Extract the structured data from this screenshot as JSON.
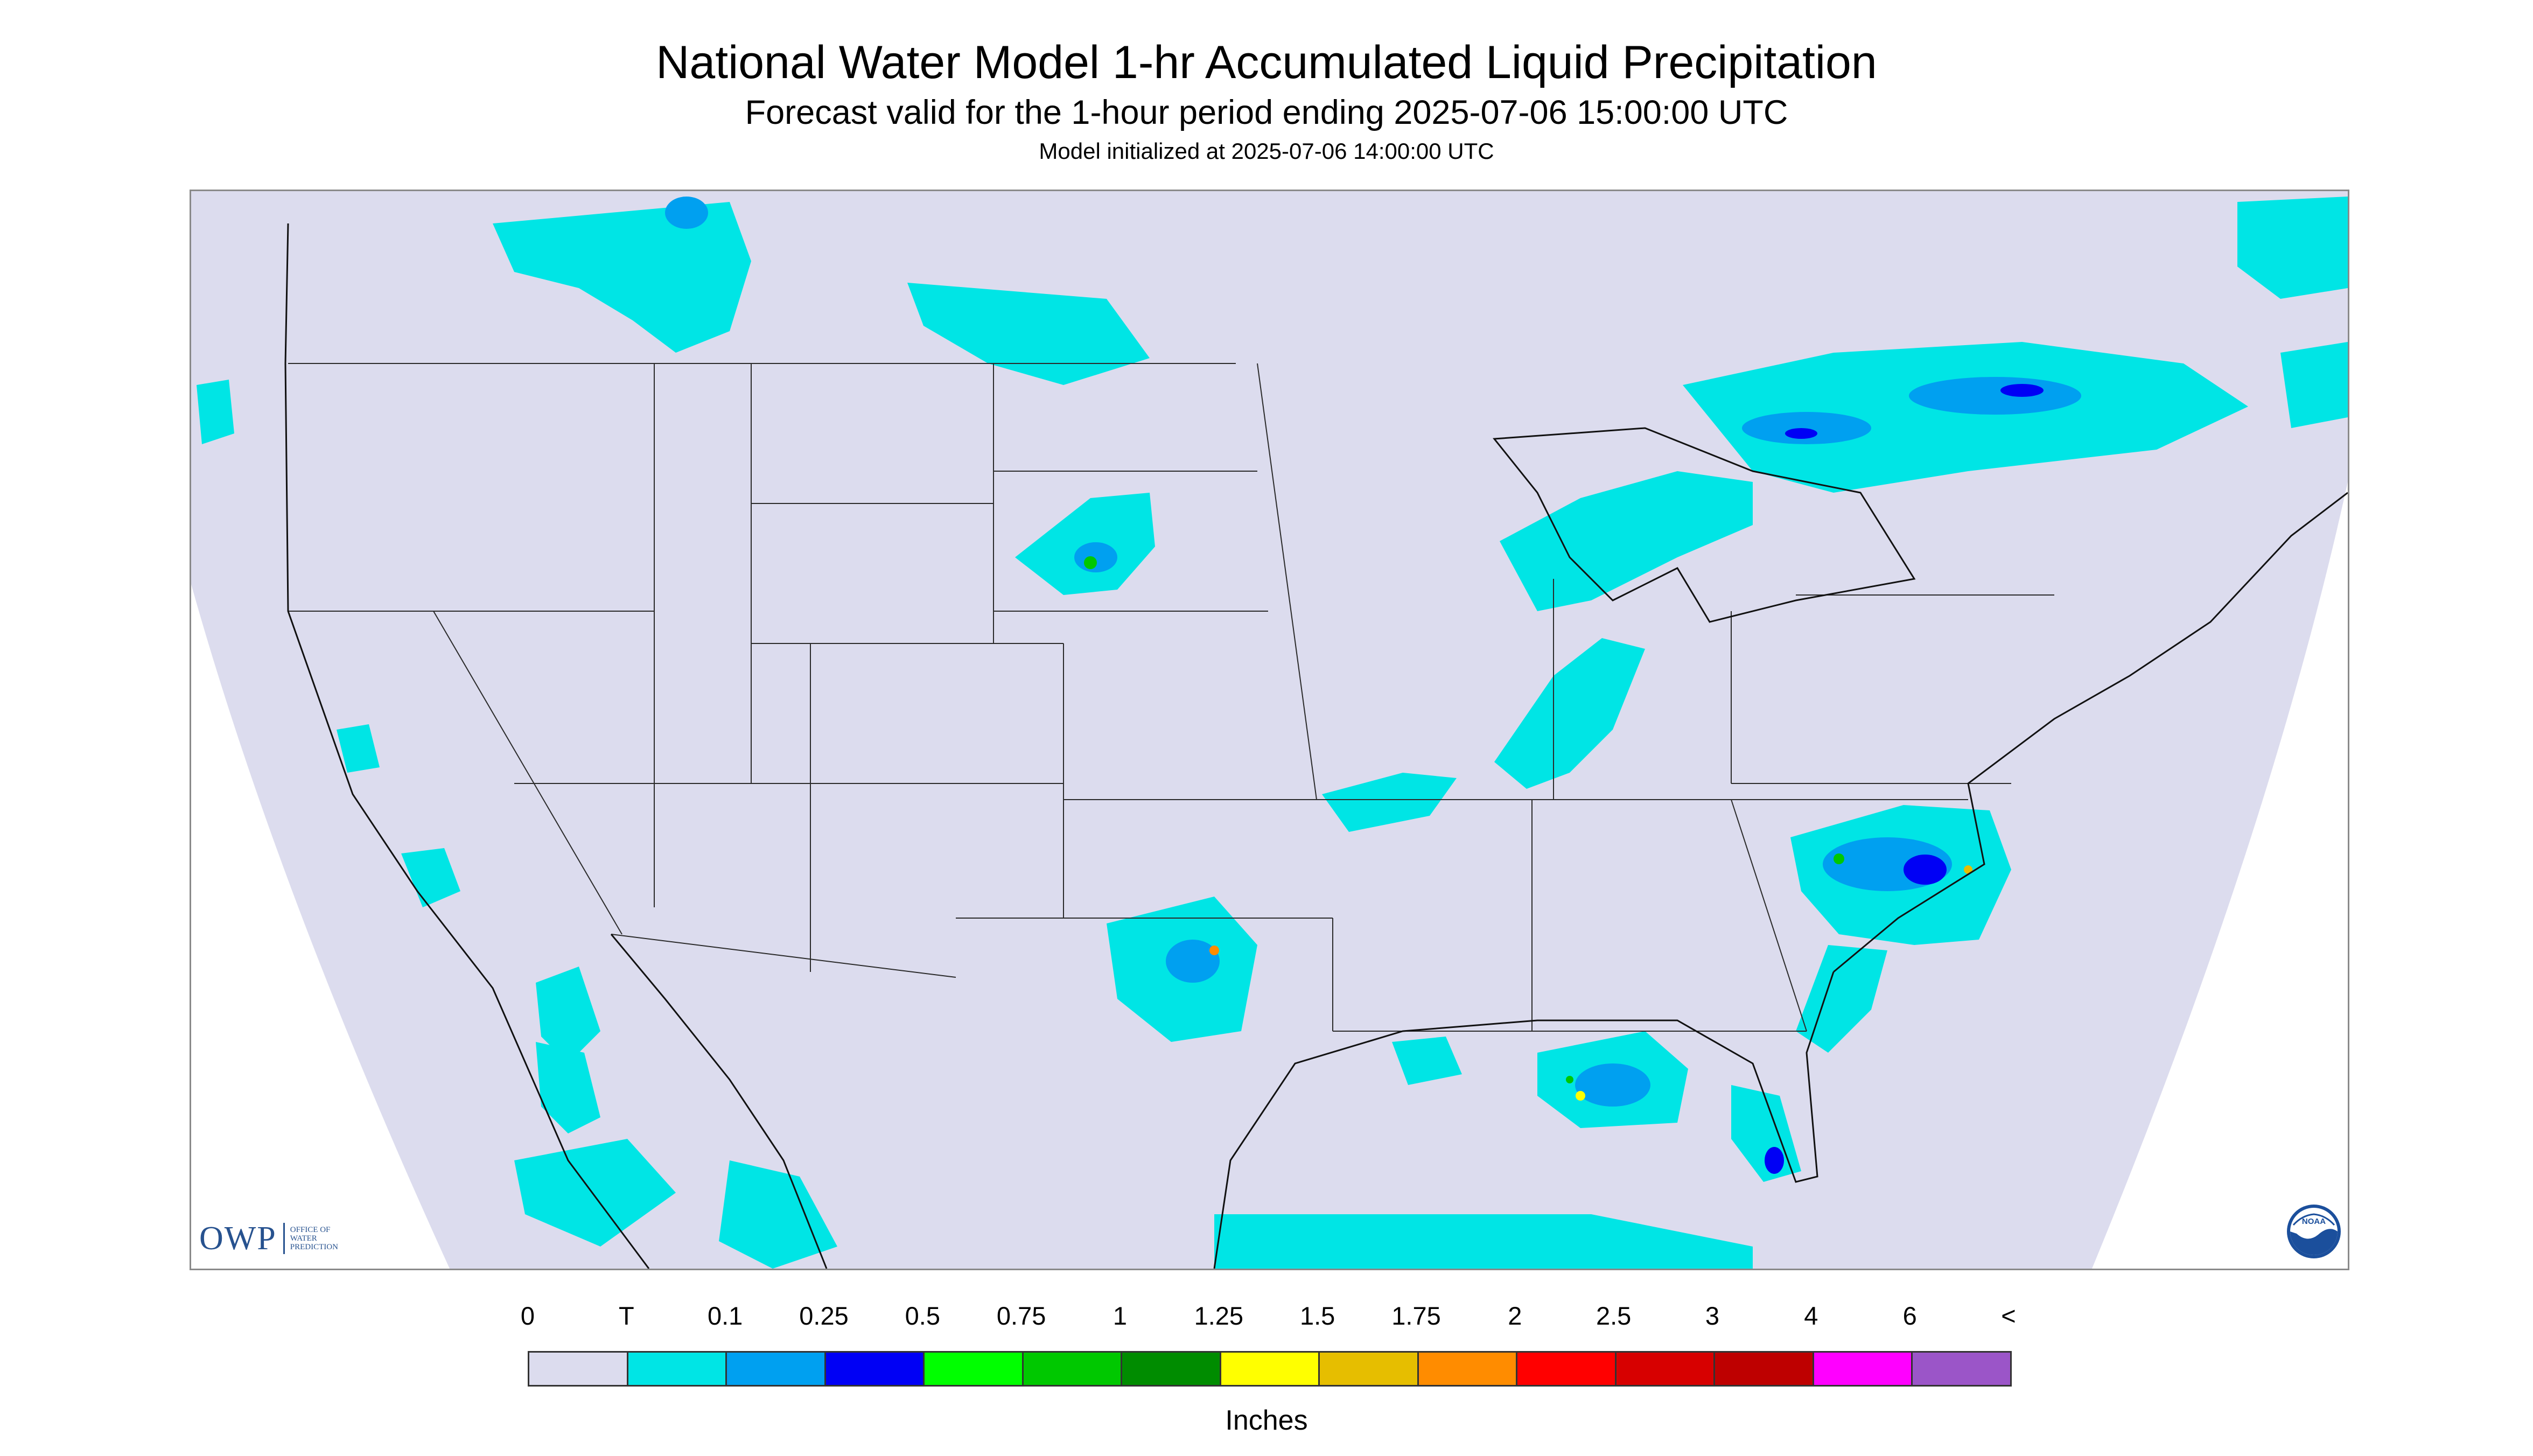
{
  "header": {
    "title": "National Water Model 1-hr Accumulated Liquid Precipitation",
    "subtitle": "Forecast valid for the 1-hour period ending 2025-07-06 15:00:00 UTC",
    "init_line": "Model initialized at 2025-07-06 14:00:00 UTC"
  },
  "map": {
    "background_color": "#dcdcee",
    "outside_domain_color": "#ffffff",
    "boundary_color": "#2b2b2b",
    "precipitation_areas": [
      {
        "region": "southern Alberta / Saskatchewan",
        "category": "T"
      },
      {
        "region": "southern Manitoba / North Dakota border",
        "category": "T"
      },
      {
        "region": "western South Dakota",
        "category": "0.5"
      },
      {
        "region": "Great Lakes / southern Ontario / Quebec",
        "category": "0.25"
      },
      {
        "region": "Ohio Valley / Illinois / Indiana",
        "category": "T"
      },
      {
        "region": "North Carolina / Virginia coast",
        "category": "1.5"
      },
      {
        "region": "South Carolina / Georgia Atlantic coast",
        "category": "T"
      },
      {
        "region": "north-central Texas",
        "category": "1.75"
      },
      {
        "region": "Gulf of Mexico south of Florida panhandle",
        "category": "1.75"
      },
      {
        "region": "southern Florida",
        "category": "0.25"
      },
      {
        "region": "Pacific coast / Baja California",
        "category": "T"
      },
      {
        "region": "northwestern Mexico",
        "category": "T"
      }
    ]
  },
  "logo": {
    "owp_mark": "OWP",
    "owp_line1": "OFFICE OF",
    "owp_line2": "WATER",
    "owp_line3": "PREDICTION",
    "noaa_text": "NOAA",
    "noaa_icon": "noaa-logo-icon"
  },
  "legend": {
    "tick_labels": [
      "0",
      "T",
      "0.1",
      "0.25",
      "0.5",
      "0.75",
      "1",
      "1.25",
      "1.5",
      "1.75",
      "2",
      "2.5",
      "3",
      "4",
      "6",
      "<"
    ],
    "colors": [
      "#dcdcee",
      "#00e5e5",
      "#00a0f0",
      "#0000f5",
      "#00ff00",
      "#00c800",
      "#008c00",
      "#ffff00",
      "#e6be00",
      "#ff8c00",
      "#ff0000",
      "#d70000",
      "#be0000",
      "#ff00ff",
      "#9b55c8"
    ],
    "units": "Inches"
  }
}
